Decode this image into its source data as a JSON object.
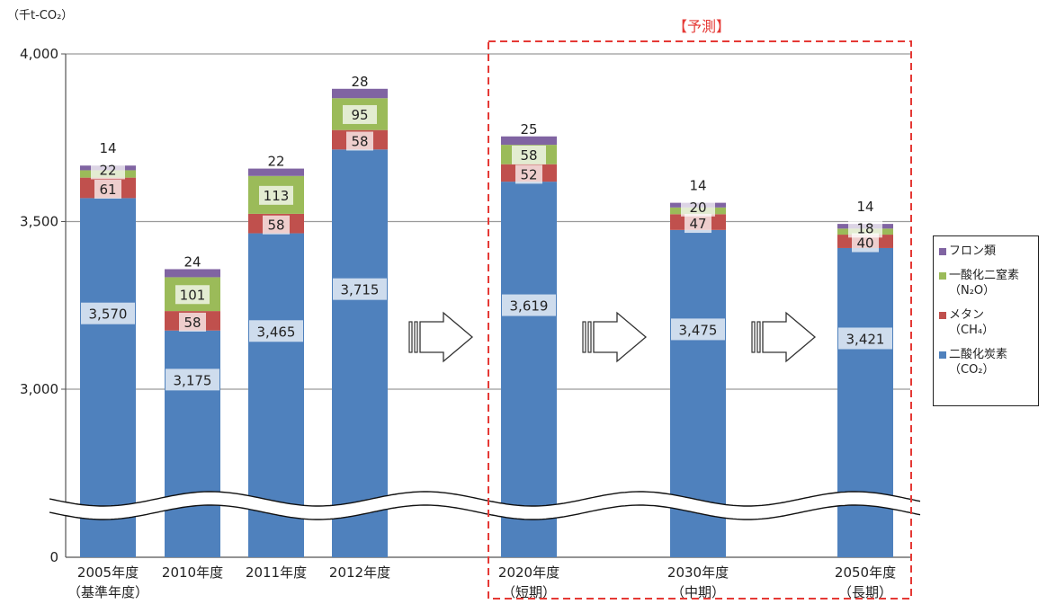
{
  "y_unit": "（千t-CO₂）",
  "forecast_label": "【予測】",
  "legend_items": [
    {
      "label": "フロン類",
      "color": "#8064a2"
    },
    {
      "label": "一酸化二窒素\n（N₂O）",
      "color": "#9bbb59"
    },
    {
      "label": "メタン\n（CH₄）",
      "color": "#c0504d"
    },
    {
      "label": "二酸化炭素\n（CO₂）",
      "color": "#4f81bd"
    }
  ],
  "chart_data": {
    "type": "bar",
    "stacked": true,
    "axis_break": true,
    "ylabel": "（千t-CO₂）",
    "yticks": [
      "0",
      "3,000",
      "3,500",
      "4,000"
    ],
    "ylim_upper": [
      3000,
      4000
    ],
    "grid": true,
    "legend_position": "right",
    "categories": [
      {
        "line1": "2005年度",
        "line2": "（基準年度）"
      },
      {
        "line1": "2010年度",
        "line2": ""
      },
      {
        "line1": "2011年度",
        "line2": ""
      },
      {
        "line1": "2012年度",
        "line2": ""
      },
      {
        "line1": "2020年度",
        "line2": "（短期）"
      },
      {
        "line1": "2030年度",
        "line2": "（中期）"
      },
      {
        "line1": "2050年度",
        "line2": "（長期）"
      }
    ],
    "series": [
      {
        "name": "二酸化炭素（CO₂）",
        "color": "#4f81bd",
        "values": [
          3570,
          3175,
          3465,
          3715,
          3619,
          3475,
          3421
        ],
        "labels": [
          "3,570",
          "3,175",
          "3,465",
          "3,715",
          "3,619",
          "3,475",
          "3,421"
        ]
      },
      {
        "name": "メタン（CH₄）",
        "color": "#c0504d",
        "values": [
          61,
          58,
          58,
          58,
          52,
          47,
          40
        ],
        "labels": [
          "61",
          "58",
          "58",
          "58",
          "52",
          "47",
          "40"
        ]
      },
      {
        "name": "一酸化二窒素（N₂O）",
        "color": "#9bbb59",
        "values": [
          22,
          101,
          113,
          95,
          58,
          20,
          18
        ],
        "labels": [
          "22",
          "101",
          "113",
          "95",
          "58",
          "20",
          "18"
        ]
      },
      {
        "name": "フロン類",
        "color": "#8064a2",
        "values": [
          14,
          24,
          22,
          28,
          25,
          14,
          14
        ],
        "labels": [
          "14",
          "24",
          "22",
          "28",
          "25",
          "14",
          "14"
        ]
      }
    ],
    "forecast_categories": [
      "2020年度",
      "2030年度",
      "2050年度"
    ]
  }
}
